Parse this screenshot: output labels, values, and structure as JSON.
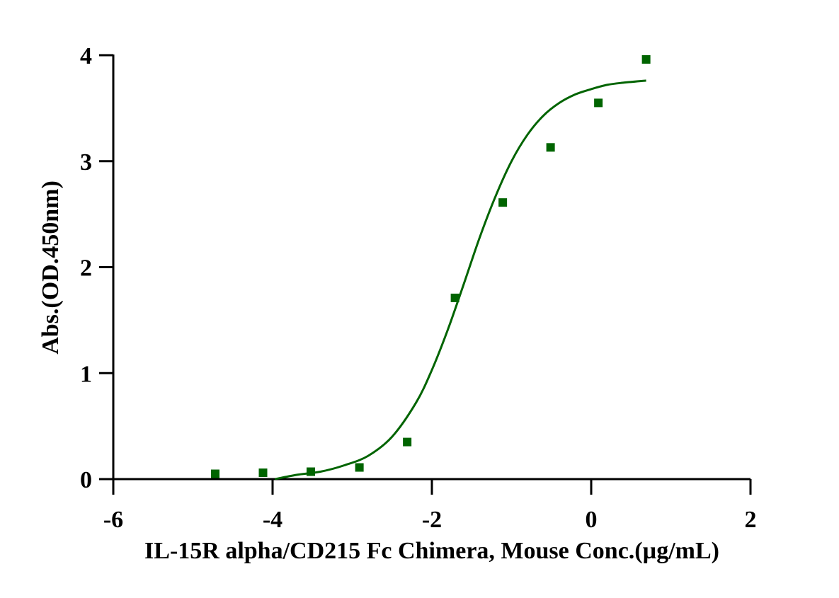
{
  "chart_data": {
    "type": "scatter",
    "title": "",
    "xlabel": "IL-15R alpha/CD215 Fc Chimera, Mouse Conc.(µg/mL)",
    "ylabel": "Abs.(OD.450nm)",
    "xlim": [
      -6,
      2
    ],
    "ylim": [
      0,
      4
    ],
    "x_ticks": [
      -6,
      -4,
      -2,
      0,
      2
    ],
    "y_ticks": [
      0,
      1,
      2,
      3,
      4
    ],
    "grid": false,
    "legend": "none",
    "series": [
      {
        "kind": "points",
        "marker": "square",
        "color": "#006400",
        "x": [
          -4.72,
          -4.12,
          -3.52,
          -2.91,
          -2.31,
          -1.71,
          -1.11,
          -0.51,
          0.09,
          0.69
        ],
        "y": [
          0.05,
          0.06,
          0.07,
          0.11,
          0.35,
          1.71,
          2.61,
          3.13,
          3.55,
          3.96
        ]
      },
      {
        "kind": "fit-curve",
        "color": "#006400",
        "x": [
          -3.97,
          -3.7,
          -3.4,
          -3.1,
          -2.8,
          -2.5,
          -2.2,
          -2.0,
          -1.8,
          -1.6,
          -1.4,
          -1.2,
          -1.0,
          -0.8,
          -0.6,
          -0.4,
          -0.2,
          0.0,
          0.2,
          0.4,
          0.69
        ],
        "y": [
          0.0,
          0.04,
          0.07,
          0.13,
          0.22,
          0.4,
          0.72,
          1.03,
          1.41,
          1.84,
          2.28,
          2.67,
          3.0,
          3.25,
          3.43,
          3.55,
          3.63,
          3.68,
          3.72,
          3.74,
          3.76
        ]
      }
    ]
  }
}
